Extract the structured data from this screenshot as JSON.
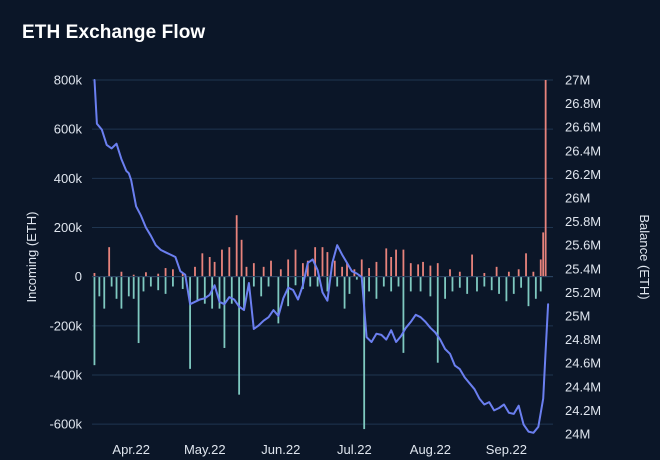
{
  "title": "ETH Exchange Flow",
  "colors": {
    "background": "#0b1628",
    "grid": "#1f3550",
    "inflow_bar": "#e8837c",
    "outflow_bar": "#7fc9c0",
    "balance_line": "#6b7ff0"
  },
  "chart_data": {
    "type": "bar",
    "title": "ETH Exchange Flow",
    "grid": true,
    "x_ticks": [
      "Apr.22",
      "May.22",
      "Jun.22",
      "Jul.22",
      "Aug.22",
      "Sep.22"
    ],
    "y_left": {
      "label": "Incoming (ETH)",
      "ylim": [
        -640000,
        800000
      ],
      "ticks": [
        800000,
        600000,
        400000,
        200000,
        0,
        -200000,
        -400000,
        -600000
      ],
      "tick_labels": [
        "800k",
        "600k",
        "400k",
        "200k",
        "0",
        "-200k",
        "-400k",
        "-600k"
      ]
    },
    "y_right": {
      "label": "Balance (ETH)",
      "ylim": [
        24000000,
        27000000
      ],
      "ticks": [
        27000000,
        26800000,
        26600000,
        26400000,
        26200000,
        26000000,
        25800000,
        25600000,
        25400000,
        25200000,
        25000000,
        24800000,
        24600000,
        24400000,
        24200000,
        24000000
      ],
      "tick_labels": [
        "27M",
        "26.8M",
        "26.6M",
        "26.4M",
        "26.2M",
        "26M",
        "25.8M",
        "25.6M",
        "25.4M",
        "25.2M",
        "25M",
        "24.8M",
        "24.6M",
        "24.4M",
        "24.2M",
        "24M"
      ]
    },
    "x_range": [
      0,
      188
    ],
    "tick_positions": [
      16,
      46,
      77,
      107,
      138,
      169
    ],
    "series": [
      {
        "type": "bar",
        "kind": "inflow",
        "points": [
          [
            1,
            15000
          ],
          [
            7,
            120000
          ],
          [
            12,
            20000
          ],
          [
            17,
            8000
          ],
          [
            22,
            18000
          ],
          [
            27,
            12000
          ],
          [
            30,
            35000
          ],
          [
            33,
            30000
          ],
          [
            37,
            15000
          ],
          [
            42,
            40000
          ],
          [
            45,
            95000
          ],
          [
            48,
            80000
          ],
          [
            50,
            60000
          ],
          [
            53,
            110000
          ],
          [
            56,
            120000
          ],
          [
            59,
            250000
          ],
          [
            61,
            150000
          ],
          [
            63,
            40000
          ],
          [
            66,
            55000
          ],
          [
            70,
            40000
          ],
          [
            73,
            65000
          ],
          [
            77,
            30000
          ],
          [
            80,
            70000
          ],
          [
            83,
            110000
          ],
          [
            86,
            55000
          ],
          [
            88,
            65000
          ],
          [
            91,
            120000
          ],
          [
            94,
            120000
          ],
          [
            96,
            100000
          ],
          [
            99,
            65000
          ],
          [
            102,
            40000
          ],
          [
            104,
            55000
          ],
          [
            107,
            30000
          ],
          [
            110,
            70000
          ],
          [
            113,
            35000
          ],
          [
            116,
            60000
          ],
          [
            120,
            115000
          ],
          [
            122,
            80000
          ],
          [
            124,
            110000
          ],
          [
            127,
            110000
          ],
          [
            130,
            55000
          ],
          [
            133,
            50000
          ],
          [
            135,
            60000
          ],
          [
            138,
            45000
          ],
          [
            141,
            55000
          ],
          [
            146,
            30000
          ],
          [
            150,
            20000
          ],
          [
            155,
            90000
          ],
          [
            160,
            15000
          ],
          [
            165,
            40000
          ],
          [
            170,
            20000
          ],
          [
            174,
            30000
          ],
          [
            177,
            95000
          ],
          [
            180,
            20000
          ],
          [
            183,
            70000
          ],
          [
            184,
            180000
          ],
          [
            185,
            800000
          ]
        ]
      },
      {
        "type": "bar",
        "kind": "outflow",
        "points": [
          [
            1,
            -360000
          ],
          [
            3,
            -80000
          ],
          [
            5,
            -130000
          ],
          [
            8,
            -40000
          ],
          [
            10,
            -90000
          ],
          [
            12,
            -130000
          ],
          [
            15,
            -80000
          ],
          [
            17,
            -90000
          ],
          [
            19,
            -270000
          ],
          [
            21,
            -60000
          ],
          [
            24,
            -40000
          ],
          [
            27,
            -55000
          ],
          [
            30,
            -70000
          ],
          [
            33,
            -40000
          ],
          [
            37,
            -50000
          ],
          [
            40,
            -375000
          ],
          [
            43,
            -100000
          ],
          [
            46,
            -110000
          ],
          [
            49,
            -130000
          ],
          [
            52,
            -130000
          ],
          [
            54,
            -290000
          ],
          [
            57,
            -110000
          ],
          [
            60,
            -480000
          ],
          [
            62,
            -130000
          ],
          [
            66,
            -40000
          ],
          [
            69,
            -80000
          ],
          [
            72,
            -40000
          ],
          [
            76,
            -190000
          ],
          [
            80,
            -120000
          ],
          [
            83,
            -35000
          ],
          [
            86,
            -50000
          ],
          [
            89,
            -40000
          ],
          [
            92,
            -40000
          ],
          [
            96,
            -60000
          ],
          [
            100,
            -40000
          ],
          [
            103,
            -130000
          ],
          [
            105,
            -70000
          ],
          [
            108,
            -12000
          ],
          [
            111,
            -620000
          ],
          [
            113,
            -60000
          ],
          [
            116,
            -90000
          ],
          [
            119,
            -40000
          ],
          [
            122,
            -60000
          ],
          [
            125,
            -40000
          ],
          [
            127,
            -310000
          ],
          [
            130,
            -60000
          ],
          [
            134,
            -60000
          ],
          [
            138,
            -80000
          ],
          [
            141,
            -350000
          ],
          [
            144,
            -90000
          ],
          [
            147,
            -60000
          ],
          [
            150,
            -45000
          ],
          [
            153,
            -70000
          ],
          [
            157,
            -60000
          ],
          [
            160,
            -40000
          ],
          [
            163,
            -55000
          ],
          [
            166,
            -70000
          ],
          [
            169,
            -100000
          ],
          [
            172,
            -70000
          ],
          [
            175,
            -45000
          ],
          [
            178,
            -120000
          ],
          [
            181,
            -90000
          ],
          [
            183,
            -60000
          ]
        ]
      },
      {
        "type": "line",
        "kind": "balance",
        "axis": "right",
        "points": [
          [
            1,
            27000000
          ],
          [
            2,
            26630000
          ],
          [
            4,
            26580000
          ],
          [
            6,
            26450000
          ],
          [
            8,
            26420000
          ],
          [
            10,
            26460000
          ],
          [
            12,
            26330000
          ],
          [
            14,
            26230000
          ],
          [
            15,
            26210000
          ],
          [
            16,
            26150000
          ],
          [
            18,
            25930000
          ],
          [
            20,
            25850000
          ],
          [
            22,
            25750000
          ],
          [
            24,
            25680000
          ],
          [
            26,
            25600000
          ],
          [
            28,
            25560000
          ],
          [
            30,
            25540000
          ],
          [
            32,
            25520000
          ],
          [
            34,
            25500000
          ],
          [
            36,
            25380000
          ],
          [
            38,
            25350000
          ],
          [
            40,
            25100000
          ],
          [
            42,
            25120000
          ],
          [
            44,
            25140000
          ],
          [
            46,
            25150000
          ],
          [
            48,
            25180000
          ],
          [
            50,
            25260000
          ],
          [
            52,
            25120000
          ],
          [
            54,
            25100000
          ],
          [
            56,
            25160000
          ],
          [
            58,
            25140000
          ],
          [
            60,
            25080000
          ],
          [
            62,
            25050000
          ],
          [
            64,
            25280000
          ],
          [
            66,
            24890000
          ],
          [
            68,
            24920000
          ],
          [
            70,
            24960000
          ],
          [
            72,
            24990000
          ],
          [
            74,
            25050000
          ],
          [
            76,
            25000000
          ],
          [
            78,
            25150000
          ],
          [
            80,
            25240000
          ],
          [
            82,
            25220000
          ],
          [
            84,
            25140000
          ],
          [
            86,
            25260000
          ],
          [
            88,
            25450000
          ],
          [
            90,
            25480000
          ],
          [
            92,
            25390000
          ],
          [
            94,
            25200000
          ],
          [
            96,
            25130000
          ],
          [
            98,
            25450000
          ],
          [
            100,
            25600000
          ],
          [
            102,
            25520000
          ],
          [
            104,
            25450000
          ],
          [
            106,
            25380000
          ],
          [
            108,
            25360000
          ],
          [
            110,
            25330000
          ],
          [
            112,
            24820000
          ],
          [
            114,
            24780000
          ],
          [
            116,
            24850000
          ],
          [
            118,
            24840000
          ],
          [
            120,
            24800000
          ],
          [
            122,
            24880000
          ],
          [
            124,
            24780000
          ],
          [
            126,
            24830000
          ],
          [
            128,
            24900000
          ],
          [
            130,
            24950000
          ],
          [
            132,
            25010000
          ],
          [
            134,
            24990000
          ],
          [
            136,
            24950000
          ],
          [
            138,
            24900000
          ],
          [
            140,
            24860000
          ],
          [
            142,
            24800000
          ],
          [
            144,
            24720000
          ],
          [
            146,
            24680000
          ],
          [
            148,
            24580000
          ],
          [
            150,
            24550000
          ],
          [
            152,
            24480000
          ],
          [
            154,
            24430000
          ],
          [
            156,
            24380000
          ],
          [
            158,
            24300000
          ],
          [
            160,
            24250000
          ],
          [
            162,
            24270000
          ],
          [
            164,
            24200000
          ],
          [
            166,
            24220000
          ],
          [
            168,
            24250000
          ],
          [
            170,
            24180000
          ],
          [
            172,
            24170000
          ],
          [
            174,
            24240000
          ],
          [
            176,
            24080000
          ],
          [
            178,
            24020000
          ],
          [
            180,
            24010000
          ],
          [
            182,
            24060000
          ],
          [
            184,
            24300000
          ],
          [
            185,
            24700000
          ],
          [
            186,
            25100000
          ]
        ]
      }
    ]
  }
}
